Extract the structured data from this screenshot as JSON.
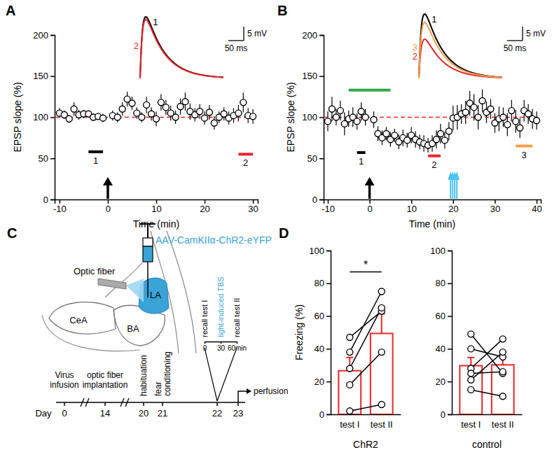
{
  "chart_data": [
    {
      "panel": "A",
      "type": "scatter",
      "marker": "circle",
      "color": "#000000",
      "xlabel": "Time (min)",
      "ylabel": "EPSP slope (%)",
      "xlim": [
        -11,
        31
      ],
      "xticks": [
        -10,
        0,
        10,
        20,
        30
      ],
      "ylim": [
        0,
        200
      ],
      "yticks": [
        0,
        50,
        100,
        150,
        200
      ],
      "x": [
        -10,
        -9,
        -8,
        -7,
        -6,
        -5,
        -4,
        -3,
        -2,
        -1,
        1,
        2,
        3,
        4,
        5,
        6,
        7,
        8,
        9,
        10,
        11,
        12,
        13,
        14,
        15,
        16,
        17,
        18,
        19,
        20,
        21,
        22,
        23,
        24,
        25,
        26,
        27,
        28,
        29,
        30
      ],
      "values": [
        105,
        103,
        98,
        110,
        103,
        104,
        104,
        100,
        101,
        99,
        102,
        100,
        110,
        122,
        117,
        105,
        100,
        115,
        104,
        98,
        118,
        112,
        105,
        100,
        113,
        119,
        107,
        103,
        107,
        99,
        106,
        93,
        100,
        104,
        99,
        102,
        105,
        118,
        102,
        101
      ],
      "errors": [
        6,
        5,
        5,
        8,
        6,
        5,
        4,
        4,
        4,
        5,
        6,
        6,
        8,
        9,
        8,
        7,
        6,
        10,
        8,
        9,
        10,
        9,
        9,
        8,
        10,
        11,
        10,
        8,
        9,
        8,
        9,
        8,
        7,
        8,
        8,
        9,
        10,
        12,
        9,
        9
      ],
      "reference_line": {
        "y": 100,
        "color": "#e8262b",
        "line_style": "dashed"
      },
      "stimulus_x": 0,
      "windows": [
        {
          "label": "1",
          "x": [
            -4,
            -1
          ],
          "y": 58,
          "color": "#000000"
        },
        {
          "label": "2",
          "x": [
            27,
            30
          ],
          "y": 55,
          "color": "#e8262b"
        }
      ],
      "traces": [
        {
          "label": "1",
          "color": "#000000",
          "amplitude": 22
        },
        {
          "label": "2",
          "color": "#e8262b",
          "amplitude": 21
        }
      ],
      "scalebar": {
        "mv": 5,
        "ms": 50,
        "mv_label": "5 mV",
        "ms_label": "50 ms"
      }
    },
    {
      "panel": "B",
      "type": "scatter",
      "marker": "circle",
      "color": "#000000",
      "xlabel": "Time (min)",
      "ylabel": "EPSP slope (%)",
      "xlim": [
        -11,
        41
      ],
      "xticks": [
        -10,
        0,
        10,
        20,
        30,
        40
      ],
      "ylim": [
        0,
        200
      ],
      "yticks": [
        0,
        50,
        100,
        150,
        200
      ],
      "x": [
        -10,
        -9,
        -8,
        -7,
        -6,
        -5,
        -4,
        -3,
        -2,
        -1,
        1,
        2,
        3,
        4,
        5,
        6,
        7,
        8,
        9,
        10,
        11,
        12,
        13,
        14,
        15,
        16,
        17,
        18,
        19,
        20,
        21,
        22,
        23,
        24,
        25,
        26,
        27,
        28,
        29,
        30,
        31,
        32,
        33,
        34,
        35,
        36,
        37,
        38,
        39,
        40
      ],
      "values": [
        95,
        110,
        100,
        108,
        92,
        98,
        100,
        95,
        107,
        100,
        97,
        80,
        75,
        80,
        73,
        78,
        70,
        75,
        72,
        78,
        73,
        70,
        68,
        66,
        68,
        73,
        80,
        72,
        83,
        99,
        100,
        104,
        106,
        117,
        112,
        100,
        120,
        106,
        110,
        93,
        98,
        100,
        91,
        108,
        95,
        87,
        108,
        104,
        98,
        96
      ],
      "errors": [
        12,
        15,
        10,
        12,
        14,
        10,
        12,
        10,
        11,
        10,
        10,
        9,
        9,
        8,
        9,
        8,
        9,
        10,
        9,
        10,
        10,
        9,
        10,
        9,
        10,
        11,
        12,
        10,
        11,
        15,
        15,
        12,
        14,
        15,
        16,
        15,
        14,
        13,
        12,
        12,
        15,
        12,
        14,
        13,
        14,
        12,
        13,
        12,
        12,
        11
      ],
      "reference_line": {
        "y": 100,
        "color": "#e8262b",
        "line_style": "dashed"
      },
      "stimulus_x": 0,
      "tbs_x": [
        19.4,
        19.9,
        20.4,
        20.9
      ],
      "tbs_color": "#4cc3f0",
      "windows": [
        {
          "x": [
            -5,
            5
          ],
          "y": 133,
          "color": "#2eaa4a"
        },
        {
          "label": "1",
          "x": [
            -3,
            -1
          ],
          "y": 57,
          "color": "#000000"
        },
        {
          "label": "2",
          "x": [
            14,
            17
          ],
          "y": 53,
          "color": "#e8262b"
        },
        {
          "label": "3",
          "x": [
            35,
            39
          ],
          "y": 65,
          "color": "#f5a04a"
        }
      ],
      "traces": [
        {
          "label": "1",
          "color": "#000000",
          "amplitude": 23
        },
        {
          "label": "2",
          "color": "#e8262b",
          "amplitude": 14
        },
        {
          "label": "3",
          "color": "#f5a04a",
          "amplitude": 20
        }
      ],
      "scalebar": {
        "mv": 5,
        "ms": 50,
        "mv_label": "5 mV",
        "ms_label": "50 ms"
      }
    },
    {
      "panel": "D",
      "type": "bar",
      "color": "#e8262b",
      "ylabel": "Freezing (%)",
      "xlabel": "ChR2",
      "categories": [
        "test I",
        "test II"
      ],
      "values": [
        26.6,
        49.4
      ],
      "errors": [
        8.1,
        12.0
      ],
      "subjects": [
        [
          47,
          63
        ],
        [
          38,
          75
        ],
        [
          28,
          65
        ],
        [
          18,
          38
        ],
        [
          2,
          6
        ]
      ],
      "ylim": [
        0,
        100
      ],
      "yticks": [
        0,
        20,
        40,
        60,
        80,
        100
      ],
      "significance": {
        "label": "*",
        "y": 87
      }
    },
    {
      "type": "bar",
      "color": "#e8262b",
      "xlabel": "control",
      "categories": [
        "test I",
        "test II"
      ],
      "values": [
        29.7,
        30.2
      ],
      "errors": [
        5.0,
        4.8
      ],
      "subjects": [
        [
          49,
          25
        ],
        [
          40,
          35
        ],
        [
          28,
          46
        ],
        [
          25,
          26
        ],
        [
          21,
          38
        ],
        [
          15,
          11
        ]
      ],
      "ylim": [
        0,
        100
      ],
      "yticks": [
        0,
        20,
        40,
        60,
        80,
        100
      ]
    }
  ],
  "diagram": {
    "panel": "C",
    "virus": "AAV-CamKIIα-ChR2-eYFP",
    "virus_color": "#3aa3d8",
    "fiber": "Optic fiber",
    "regions": {
      "cea": "CeA",
      "ba": "BA",
      "la": "LA"
    },
    "timeline": {
      "axis_label": "Day",
      "events": [
        {
          "day": 0,
          "label": [
            "Virus",
            "infusion"
          ]
        },
        {
          "day": 14,
          "label": [
            "optic fiber",
            "implantation"
          ]
        },
        {
          "day": 20,
          "label": [
            "habituation"
          ]
        },
        {
          "day": 21,
          "label": [
            "fear",
            "conditioning"
          ]
        },
        {
          "day": 22
        },
        {
          "day": 23,
          "label": [
            "perfusion"
          ]
        }
      ]
    },
    "session": {
      "xlim": [
        0,
        60
      ],
      "ticks": [
        0,
        30,
        {
          "value": 60,
          "label": "60min"
        }
      ],
      "events": [
        {
          "time": 0,
          "label": "recall test I",
          "color": "#000000"
        },
        {
          "time": 30,
          "label": "light-induced TBS",
          "color": "#3aa3d8"
        },
        {
          "time": 60,
          "label": "recall test II",
          "color": "#000000"
        }
      ]
    }
  }
}
